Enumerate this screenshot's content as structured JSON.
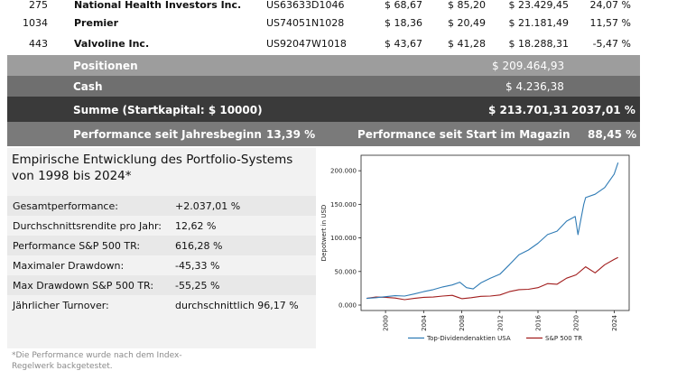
{
  "holdings": [
    {
      "qty": "275",
      "name": "National Health Investors Inc.",
      "isin": "US63633D1046",
      "buy": "$ 68,67",
      "price": "$ 85,20",
      "value": "$ 23.429,45",
      "perf": "24,07 %"
    },
    {
      "qty": "1034",
      "name": "Premier",
      "isin": "US74051N1028",
      "buy": "$ 18,36",
      "price": "$ 20,49",
      "value": "$ 21.181,49",
      "perf": "11,57 %"
    },
    {
      "qty": "443",
      "name": "Valvoline Inc.",
      "isin": "US92047W1018",
      "buy": "$ 43,67",
      "price": "$ 41,28",
      "value": "$ 18.288,31",
      "perf": "-5,47 %"
    }
  ],
  "totals": {
    "positions_label": "Positionen",
    "positions_value": "$ 209.464,93",
    "cash_label": "Cash",
    "cash_value": "$ 4.236,38",
    "sum_label": "Summe (Startkapital: $ 10000)",
    "sum_value": "$ 213.701,31",
    "sum_perf": "2037,01 %",
    "ytd_label": "Performance seit Jahresbeginn",
    "ytd_value": "13,39 %",
    "start_label": "Performance seit Start im Magazin",
    "start_value": "88,45 %"
  },
  "stats": {
    "title_line1": "Empirische Entwicklung des Portfolio-Systems",
    "title_line2": "von 1998 bis 2024*",
    "rows": [
      {
        "label": "Gesamtperformance:",
        "value": "+2.037,01 %"
      },
      {
        "label": "Durchschnittsrendite pro Jahr:",
        "value": "12,62 %"
      },
      {
        "label": "Performance S&P 500 TR:",
        "value": "616,28 %"
      },
      {
        "label": "Maximaler Drawdown:",
        "value": "-45,33 %"
      },
      {
        "label": "Max Drawdown S&P 500 TR:",
        "value": "-55,25 %"
      },
      {
        "label": "Jährlicher Turnover:",
        "value": "durchschnittlich 96,17 %"
      }
    ],
    "footnote_line1": "*Die Performance wurde nach dem Index-",
    "footnote_line2": "Regelwerk backgetestet."
  },
  "chart_data": {
    "type": "line",
    "ylabel": "Depotwert in USD",
    "yticks": [
      "0.000",
      "50.000",
      "100.000",
      "150.000",
      "200.000"
    ],
    "ylim": [
      0,
      215000
    ],
    "xticks": [
      "2000",
      "2004",
      "2008",
      "2012",
      "2016",
      "2020",
      "2024"
    ],
    "xlim": [
      1998,
      2025
    ],
    "grid": false,
    "legend_position": "bottom",
    "series": [
      {
        "name": "Top-Dividendenaktien USA",
        "color": "#2f7bb5",
        "x": [
          1998,
          1999,
          2000,
          2001,
          2002,
          2003,
          2004,
          2005,
          2006,
          2007,
          2007.8,
          2008.5,
          2009.2,
          2010,
          2011,
          2012,
          2013,
          2014,
          2015,
          2016,
          2017,
          2018,
          2019,
          2019.9,
          2020.2,
          2020.8,
          2021,
          2022,
          2023,
          2024,
          2024.4
        ],
        "y": [
          10000,
          11000,
          12500,
          14000,
          13500,
          16500,
          20000,
          23000,
          27000,
          30000,
          34000,
          26000,
          24000,
          33000,
          40000,
          46000,
          60000,
          75000,
          82000,
          92000,
          105000,
          110000,
          125000,
          132000,
          105000,
          150000,
          160000,
          165000,
          175000,
          195000,
          212000
        ]
      },
      {
        "name": "S&P 500 TR",
        "color": "#a11d1d",
        "x": [
          1998,
          1999,
          2000,
          2001,
          2002,
          2003,
          2004,
          2005,
          2006,
          2007,
          2008,
          2009,
          2010,
          2011,
          2012,
          2013,
          2014,
          2015,
          2016,
          2017,
          2018,
          2019,
          2020,
          2021,
          2022,
          2023,
          2024,
          2024.4
        ],
        "y": [
          10000,
          12000,
          11500,
          10500,
          8000,
          10000,
          11500,
          12000,
          13500,
          14500,
          9500,
          11000,
          13000,
          13500,
          15000,
          20000,
          23000,
          23500,
          26000,
          32000,
          31000,
          40000,
          45000,
          57000,
          48000,
          60000,
          68000,
          71000
        ]
      }
    ]
  }
}
